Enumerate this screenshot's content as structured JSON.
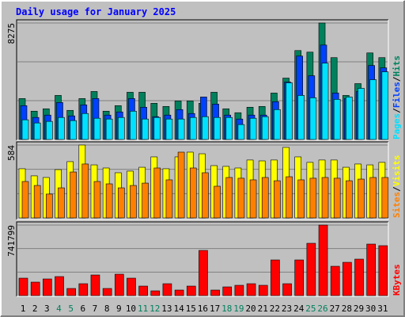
{
  "title": "Daily usage for January 2025",
  "chart_data": [
    {
      "type": "bar",
      "ylim": [
        0,
        8275
      ],
      "yticks": [
        8275
      ],
      "legend_separator": "/",
      "series": [
        {
          "name": "Hits",
          "color": "#00805c",
          "values": [
            2907,
            2012,
            2180,
            3130,
            2068,
            2907,
            3410,
            2012,
            2404,
            3354,
            3354,
            2571,
            2348,
            2739,
            2739,
            2571,
            3354,
            2180,
            1901,
            2292,
            2348,
            3298,
            4360,
            6317,
            6205,
            8275,
            5814,
            3130,
            3969,
            6149,
            5814
          ]
        },
        {
          "name": "Files",
          "color": "#0040ff",
          "values": [
            2404,
            1565,
            1733,
            2627,
            1677,
            2460,
            2907,
            1733,
            1957,
            2907,
            2292,
            1621,
            1733,
            2124,
            1845,
            3019,
            2516,
            1733,
            1453,
            1733,
            1733,
            2683,
            4081,
            5925,
            4528,
            6708,
            3298,
            2907,
            3410,
            5255,
            5087
          ]
        },
        {
          "name": "Pages",
          "color": "#00e0ff",
          "values": [
            1398,
            1174,
            1286,
            1565,
            1342,
            1845,
            1509,
            1453,
            1565,
            2012,
            1453,
            1565,
            1453,
            1453,
            1565,
            1621,
            1565,
            1565,
            1062,
            1509,
            1621,
            2124,
            4025,
            3130,
            2963,
            5422,
            2851,
            3019,
            3634,
            4248,
            4807
          ]
        }
      ]
    },
    {
      "type": "bar",
      "ylim": [
        0,
        584
      ],
      "yticks": [
        584
      ],
      "legend_separator": "/",
      "series": [
        {
          "name": "Visits",
          "color": "#ffff00",
          "values": [
            394,
            337,
            324,
            387,
            451,
            584,
            425,
            400,
            362,
            375,
            406,
            489,
            394,
            489,
            527,
            514,
            419,
            413,
            400,
            464,
            457,
            464,
            565,
            489,
            445,
            464,
            464,
            406,
            432,
            425,
            445
          ]
        },
        {
          "name": "Sites",
          "color": "#ff8000",
          "values": [
            292,
            260,
            191,
            241,
            368,
            432,
            292,
            273,
            241,
            260,
            279,
            400,
            305,
            527,
            400,
            362,
            254,
            324,
            318,
            305,
            324,
            298,
            330,
            305,
            318,
            324,
            318,
            298,
            311,
            324,
            324
          ]
        }
      ]
    },
    {
      "type": "bar",
      "ylim": [
        0,
        741799
      ],
      "yticks": [
        741799
      ],
      "series": [
        {
          "name": "KBytes",
          "color": "#ff0000",
          "values": [
            183370,
            141695,
            175035,
            200040,
            75015,
            125025,
            216710,
            75015,
            225045,
            183370,
            100020,
            50010,
            125025,
            58345,
            100020,
            475095,
            58345,
            91685,
            108355,
            125025,
            108355,
            375075,
            125025,
            375075,
            550110,
            741799,
            308395,
            350070,
            383410,
            541775,
            525105
          ]
        }
      ],
      "categories": [
        "1",
        "2",
        "3",
        "4",
        "5",
        "6",
        "7",
        "8",
        "9",
        "10",
        "11",
        "12",
        "13",
        "14",
        "15",
        "16",
        "17",
        "18",
        "19",
        "20",
        "21",
        "22",
        "23",
        "24",
        "25",
        "26",
        "27",
        "28",
        "29",
        "30",
        "31"
      ],
      "category_colors": [
        "#000000",
        "#000000",
        "#000000",
        "#00805c",
        "#00805c",
        "#000000",
        "#000000",
        "#000000",
        "#000000",
        "#000000",
        "#00805c",
        "#00805c",
        "#000000",
        "#000000",
        "#000000",
        "#000000",
        "#000000",
        "#00805c",
        "#00805c",
        "#000000",
        "#000000",
        "#000000",
        "#000000",
        "#000000",
        "#00805c",
        "#00805c",
        "#000000",
        "#000000",
        "#000000",
        "#000000",
        "#000000"
      ]
    }
  ]
}
